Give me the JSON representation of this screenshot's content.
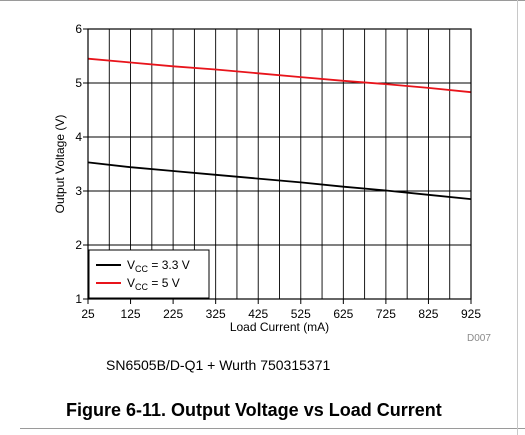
{
  "chart_data": {
    "type": "line",
    "ylabel": "Output Voltage (V)",
    "xlabel": "Load Current (mA)",
    "xlim": [
      25,
      925
    ],
    "ylim": [
      1,
      6
    ],
    "x_ticks": [
      25,
      125,
      225,
      325,
      425,
      525,
      625,
      725,
      825,
      925
    ],
    "y_ticks": [
      1,
      2,
      3,
      4,
      5,
      6
    ],
    "x_minor_step": 50,
    "grid": true,
    "legend_position": "bottom-left",
    "series": [
      {
        "name": "V",
        "name_sub": "CC",
        "name_suffix": " = 3.3 V",
        "color": "#000000",
        "x": [
          25,
          125,
          225,
          325,
          425,
          525,
          625,
          725,
          825,
          925
        ],
        "y": [
          3.53,
          3.44,
          3.37,
          3.3,
          3.23,
          3.16,
          3.08,
          3.01,
          2.93,
          2.85
        ]
      },
      {
        "name": "V",
        "name_sub": "CC",
        "name_suffix": " = 5 V",
        "color": "#e8141b",
        "x": [
          25,
          125,
          225,
          325,
          425,
          525,
          625,
          725,
          825,
          925
        ],
        "y": [
          5.45,
          5.38,
          5.31,
          5.25,
          5.18,
          5.11,
          5.04,
          4.98,
          4.91,
          4.83
        ]
      }
    ]
  },
  "chart_id": "D007",
  "caption": "SN6505B/D-Q1 + Wurth 750315371",
  "figure_title": "Figure 6-11. Output Voltage vs Load Current"
}
